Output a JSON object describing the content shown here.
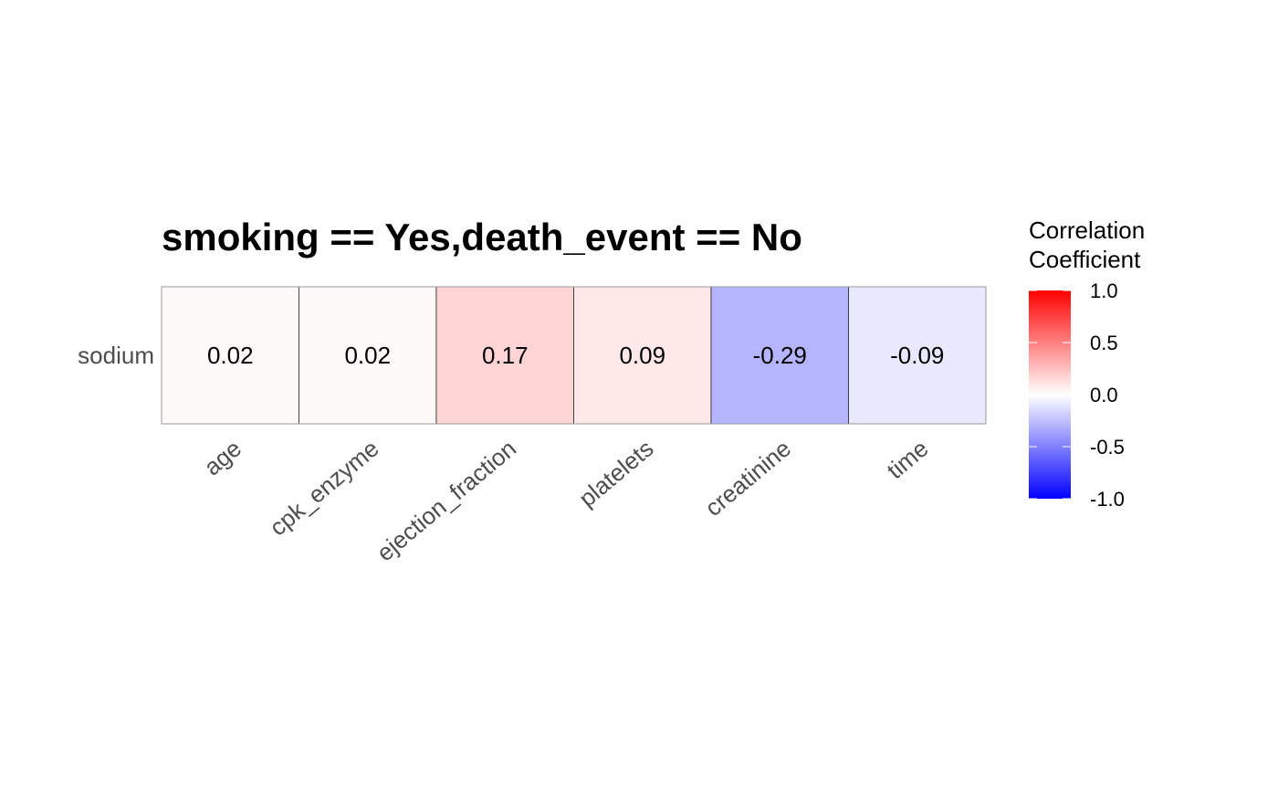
{
  "chart_data": {
    "type": "heatmap",
    "title": "smoking == Yes,death_event == No",
    "rows": [
      "sodium"
    ],
    "columns": [
      "age",
      "cpk_enzyme",
      "ejection_fraction",
      "platelets",
      "creatinine",
      "time"
    ],
    "values": [
      [
        0.02,
        0.02,
        0.17,
        0.09,
        -0.29,
        -0.09
      ]
    ],
    "labels": [
      [
        "0.02",
        "0.02",
        "0.17",
        "0.09",
        "-0.29",
        "-0.09"
      ]
    ],
    "color_scale": {
      "low": "#0000ff",
      "mid": "#ffffff",
      "high": "#ff0000",
      "limits": [
        -1,
        1
      ]
    },
    "legend": {
      "title_line1": "Correlation",
      "title_line2": "Coefficient",
      "ticks": [
        {
          "value": 1,
          "label": "1.0"
        },
        {
          "value": 0.5,
          "label": "0.5"
        },
        {
          "value": 0,
          "label": "0.0"
        },
        {
          "value": -0.5,
          "label": "-0.5"
        },
        {
          "value": -1,
          "label": "-1.0"
        }
      ],
      "position": "right"
    },
    "grid": false
  }
}
